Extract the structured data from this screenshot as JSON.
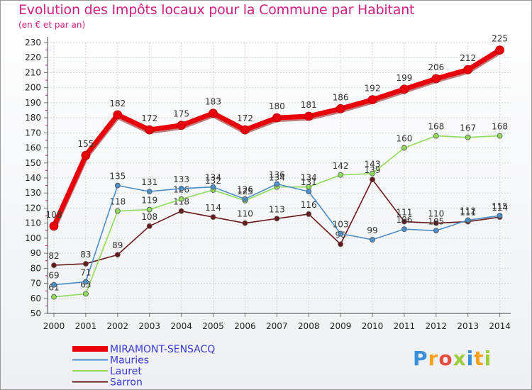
{
  "title": "Evolution des Impôts locaux pour la Commune par Habitant",
  "subtitle": "(en € et par an)",
  "logo_letters": [
    "P",
    "r",
    "o",
    "x",
    "i",
    "t",
    "i"
  ],
  "chart_data": {
    "type": "line",
    "x": [
      "2000",
      "2001",
      "2002",
      "2003",
      "2004",
      "2005",
      "2006",
      "2007",
      "2008",
      "2009",
      "2010",
      "2011",
      "2012",
      "2013",
      "2014"
    ],
    "ylim": [
      50,
      230
    ],
    "yticks": [
      50,
      60,
      70,
      80,
      90,
      100,
      110,
      120,
      130,
      140,
      150,
      160,
      170,
      180,
      190,
      200,
      210,
      220,
      230
    ],
    "grid": true,
    "legend_position": "bottom-left",
    "series": [
      {
        "name": "MIRAMONT-SENSACQ",
        "color": "#e8000b",
        "values": [
          108,
          155,
          182,
          172,
          175,
          183,
          172,
          180,
          181,
          186,
          192,
          199,
          206,
          212,
          225
        ]
      },
      {
        "name": "Mauries",
        "color": "#4a8fc9",
        "values": [
          69,
          71,
          135,
          131,
          133,
          134,
          126,
          136,
          131,
          103,
          99,
          106,
          105,
          112,
          115
        ]
      },
      {
        "name": "Lauret",
        "color": "#8fdb5a",
        "values": [
          61,
          63,
          118,
          119,
          126,
          132,
          125,
          134,
          134,
          142,
          143,
          160,
          168,
          167,
          168
        ]
      },
      {
        "name": "Sarron",
        "color": "#6b1a1a",
        "values": [
          82,
          83,
          89,
          108,
          118,
          114,
          110,
          113,
          116,
          96,
          139,
          111,
          110,
          111,
          114
        ]
      }
    ]
  }
}
